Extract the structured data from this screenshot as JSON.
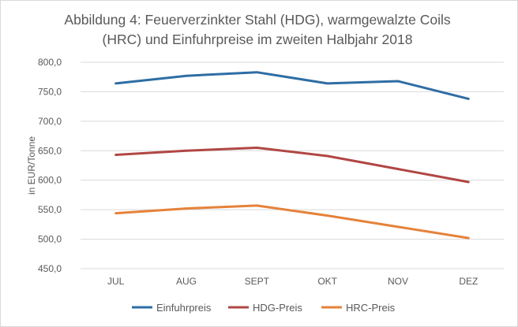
{
  "chart_data": {
    "type": "line",
    "title_line1": "Abbildung 4: Feuerverzinkter Stahl (HDG), warmgewalzte Coils",
    "title_line2": "(HRC) und Einfuhrpreise im zweiten Halbjahr 2018",
    "xlabel": "",
    "ylabel": "in EUR/Tonne",
    "categories": [
      "JUL",
      "AUG",
      "SEPT",
      "OKT",
      "NOV",
      "DEZ"
    ],
    "ylim": [
      450,
      800
    ],
    "yticks": [
      450,
      500,
      550,
      600,
      650,
      700,
      750,
      800
    ],
    "ytick_labels": [
      "450,0",
      "500,0",
      "550,0",
      "600,0",
      "650,0",
      "700,0",
      "750,0",
      "800,0"
    ],
    "grid": true,
    "legend_position": "bottom",
    "series": [
      {
        "name": "Einfuhrpreis",
        "color": "#2e6da4",
        "values": [
          764,
          777,
          783,
          764,
          768,
          738
        ]
      },
      {
        "name": "HDG-Preis",
        "color": "#b04744",
        "values": [
          643,
          650,
          655,
          641,
          619,
          597
        ]
      },
      {
        "name": "HRC-Preis",
        "color": "#e5823a",
        "values": [
          544,
          552,
          557,
          540,
          521,
          502
        ]
      }
    ]
  }
}
